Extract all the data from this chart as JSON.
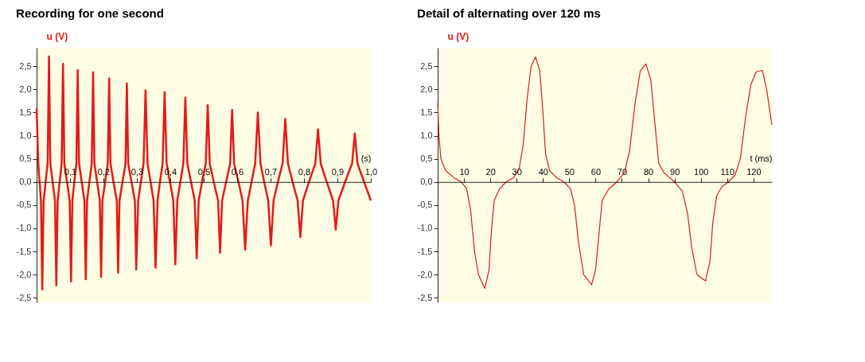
{
  "chart_data": [
    {
      "type": "line",
      "title": "Recording for one second",
      "xlabel": "(s)",
      "ylabel": "u (V)",
      "color": "#e41a1a",
      "grid": false,
      "xlim": [
        0,
        1.0
      ],
      "ylim": [
        -2.6,
        2.9
      ],
      "xticks": [
        {
          "value": 0.1,
          "label": "0,1"
        },
        {
          "value": 0.2,
          "label": "0,2"
        },
        {
          "value": 0.3,
          "label": "0,3"
        },
        {
          "value": 0.4,
          "label": "0,4"
        },
        {
          "value": 0.5,
          "label": "0,5"
        },
        {
          "value": 0.6,
          "label": "0,6"
        },
        {
          "value": 0.7,
          "label": "0,7"
        },
        {
          "value": 0.8,
          "label": "0,8"
        },
        {
          "value": 0.9,
          "label": "0,9"
        },
        {
          "value": 1.0,
          "label": "1,0"
        }
      ],
      "yticks": [
        {
          "value": -2.5,
          "label": "-2,5"
        },
        {
          "value": -2.0,
          "label": "-2,0"
        },
        {
          "value": -1.5,
          "label": "-1,5"
        },
        {
          "value": -1.0,
          "label": "-1,0"
        },
        {
          "value": -0.5,
          "label": "-0,5"
        },
        {
          "value": 0,
          "label": "0,0"
        },
        {
          "value": 0.5,
          "label": "0,5"
        },
        {
          "value": 1.0,
          "label": "1,0"
        },
        {
          "value": 1.5,
          "label": "1,5"
        },
        {
          "value": 2.0,
          "label": "2,0"
        },
        {
          "value": 2.5,
          "label": "2,5"
        }
      ],
      "x": [
        0.0,
        0.005,
        0.009,
        0.013,
        0.017,
        0.021,
        0.027,
        0.033,
        0.037,
        0.041,
        0.048,
        0.055,
        0.059,
        0.063,
        0.069,
        0.075,
        0.079,
        0.083,
        0.091,
        0.099,
        0.103,
        0.107,
        0.113,
        0.119,
        0.123,
        0.127,
        0.135,
        0.143,
        0.147,
        0.151,
        0.158,
        0.165,
        0.169,
        0.173,
        0.181,
        0.189,
        0.193,
        0.197,
        0.205,
        0.213,
        0.217,
        0.221,
        0.23,
        0.24,
        0.244,
        0.248,
        0.257,
        0.266,
        0.27,
        0.274,
        0.284,
        0.294,
        0.298,
        0.304,
        0.312,
        0.32,
        0.326,
        0.332,
        0.341,
        0.35,
        0.356,
        0.362,
        0.369,
        0.377,
        0.383,
        0.389,
        0.399,
        0.409,
        0.415,
        0.421,
        0.43,
        0.439,
        0.445,
        0.451,
        0.462,
        0.473,
        0.479,
        0.485,
        0.495,
        0.506,
        0.512,
        0.518,
        0.53,
        0.543,
        0.549,
        0.555,
        0.567,
        0.579,
        0.585,
        0.591,
        0.604,
        0.616,
        0.624,
        0.632,
        0.643,
        0.654,
        0.662,
        0.67,
        0.681,
        0.693,
        0.701,
        0.709,
        0.722,
        0.736,
        0.744,
        0.752,
        0.766,
        0.781,
        0.789,
        0.797,
        0.815,
        0.834,
        0.842,
        0.85,
        0.868,
        0.887,
        0.895,
        0.903,
        0.923,
        0.944,
        0.952,
        0.96,
        0.98,
        1.0
      ],
      "values": [
        1.6,
        0.4,
        0.0,
        -0.4,
        -2.32,
        -0.4,
        0.0,
        0.4,
        2.71,
        0.4,
        0.0,
        -0.4,
        -2.23,
        -0.4,
        0.0,
        0.4,
        2.55,
        0.4,
        0.0,
        -0.4,
        -2.15,
        -0.4,
        0.0,
        0.4,
        2.42,
        0.4,
        0.0,
        -0.4,
        -2.1,
        -0.4,
        0.0,
        0.4,
        2.37,
        0.4,
        0.0,
        -0.4,
        -2.05,
        -0.4,
        0.0,
        0.4,
        2.24,
        0.4,
        0.0,
        -0.4,
        -1.96,
        -0.4,
        0.0,
        0.4,
        2.13,
        0.4,
        0.0,
        -0.4,
        -1.89,
        -0.4,
        0.0,
        0.4,
        1.98,
        0.4,
        0.0,
        -0.4,
        -1.85,
        -0.4,
        0.0,
        0.4,
        1.94,
        0.4,
        0.0,
        -0.4,
        -1.78,
        -0.4,
        0.0,
        0.4,
        1.82,
        0.4,
        0.0,
        -0.4,
        -1.65,
        -0.4,
        0.0,
        0.4,
        1.66,
        0.4,
        0.0,
        -0.4,
        -1.53,
        -0.4,
        0.0,
        0.4,
        1.56,
        0.4,
        0.0,
        -0.4,
        -1.46,
        -0.4,
        0.0,
        0.4,
        1.5,
        0.4,
        0.0,
        -0.4,
        -1.37,
        -0.4,
        0.0,
        0.4,
        1.36,
        0.4,
        0.0,
        -0.4,
        -1.19,
        -0.4,
        0.0,
        0.4,
        1.14,
        0.4,
        0.0,
        -0.4,
        -1.03,
        -0.4,
        0.0,
        0.4,
        1.05,
        0.4,
        0.0,
        -0.4
      ]
    },
    {
      "type": "line",
      "title": "Detail of alternating over 120 ms",
      "xlabel": "t (ms)",
      "ylabel": "u (V)",
      "color": "#d42020",
      "grid": false,
      "xlim": [
        0,
        127
      ],
      "ylim": [
        -2.6,
        2.9
      ],
      "xticks": [
        10,
        20,
        30,
        40,
        50,
        60,
        70,
        80,
        90,
        100,
        110,
        120
      ],
      "yticks": [
        {
          "value": -2.5,
          "label": "-2,5"
        },
        {
          "value": -2.0,
          "label": "-2,0"
        },
        {
          "value": -1.5,
          "label": "-1,5"
        },
        {
          "value": -1.0,
          "label": "-1,0"
        },
        {
          "value": -0.5,
          "label": "-0,5"
        },
        {
          "value": 0,
          "label": "0,0"
        },
        {
          "value": 0.5,
          "label": "0,5"
        },
        {
          "value": 1.0,
          "label": "1,0"
        },
        {
          "value": 1.5,
          "label": "1,5"
        },
        {
          "value": 2.0,
          "label": "2,0"
        },
        {
          "value": 2.5,
          "label": "2,5"
        }
      ],
      "x": [
        0,
        0.5,
        1.2,
        3,
        6,
        9,
        11,
        12.5,
        14,
        15.5,
        17.9,
        19.5,
        20.5,
        21.5,
        23.5,
        26,
        29,
        31,
        32.5,
        34,
        35.5,
        37.2,
        38.8,
        40,
        41,
        42.5,
        45,
        48,
        50.5,
        52,
        53.5,
        55.5,
        58.5,
        60,
        61.5,
        62.5,
        65,
        68,
        71,
        73,
        75,
        77,
        79.1,
        81,
        82.5,
        84,
        86,
        90,
        93,
        95,
        96.5,
        98.5,
        101.8,
        103.5,
        104.5,
        106,
        108,
        110.5,
        113,
        115,
        117,
        119,
        121,
        123.4,
        125,
        127
      ],
      "values": [
        1.71,
        1.0,
        0.5,
        0.25,
        0.1,
        0.0,
        -0.15,
        -0.6,
        -1.5,
        -2.0,
        -2.3,
        -1.9,
        -1.0,
        -0.4,
        -0.15,
        0.0,
        0.1,
        0.3,
        0.8,
        1.8,
        2.5,
        2.7,
        2.4,
        1.5,
        0.6,
        0.25,
        0.1,
        0.0,
        -0.15,
        -0.5,
        -1.3,
        -2.0,
        -2.22,
        -1.9,
        -1.0,
        -0.4,
        -0.15,
        0.0,
        0.2,
        0.7,
        1.7,
        2.4,
        2.55,
        2.2,
        1.3,
        0.4,
        0.2,
        0.0,
        -0.2,
        -0.7,
        -1.4,
        -2.0,
        -2.14,
        -1.7,
        -0.9,
        -0.3,
        -0.1,
        0.0,
        0.15,
        0.5,
        1.4,
        2.1,
        2.38,
        2.41,
        2.0,
        1.23
      ]
    }
  ]
}
